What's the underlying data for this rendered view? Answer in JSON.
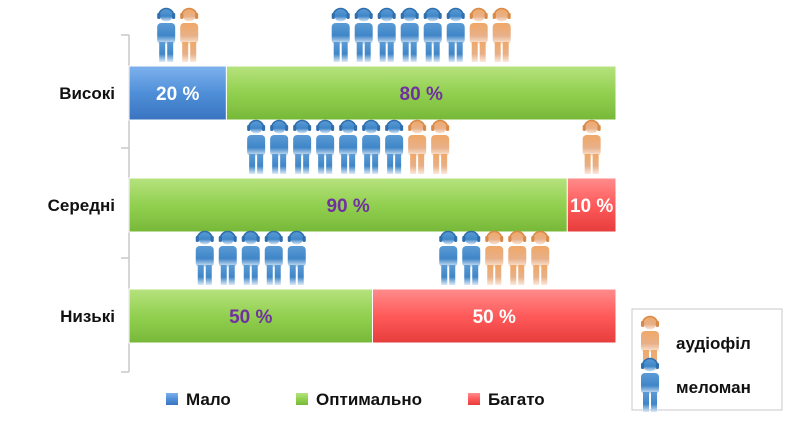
{
  "chart_data": {
    "type": "bar",
    "orientation": "horizontal",
    "stacked": true,
    "categories": [
      "Високі",
      "Середні",
      "Низькі"
    ],
    "series": [
      {
        "name": "Мало",
        "values": [
          20,
          0,
          0
        ],
        "color": "#4f8fd8"
      },
      {
        "name": "Оптимально",
        "values": [
          80,
          90,
          50
        ],
        "color": "#92d050"
      },
      {
        "name": "Багато",
        "values": [
          0,
          10,
          50
        ],
        "color": "#ff5a5a"
      }
    ],
    "value_suffix": " %",
    "xlim": [
      0,
      100
    ],
    "legend_position": "bottom",
    "people": [
      {
        "category": "Високі",
        "groups": [
          {
            "series": "Мало",
            "meloman": 1,
            "audiophile": 1
          },
          {
            "series": "Оптимально",
            "meloman": 6,
            "audiophile": 2
          }
        ]
      },
      {
        "category": "Середні",
        "groups": [
          {
            "series": "Оптимально",
            "meloman": 7,
            "audiophile": 2
          },
          {
            "series": "Багато",
            "meloman": 0,
            "audiophile": 1
          }
        ]
      },
      {
        "category": "Низькі",
        "groups": [
          {
            "series": "Оптимально",
            "meloman": 5,
            "audiophile": 0
          },
          {
            "series": "Багато",
            "meloman": 2,
            "audiophile": 3
          }
        ]
      }
    ]
  },
  "people_legend": {
    "audiophile_label": "аудіофіл",
    "meloman_label": "меломан",
    "audiophile_color": "#f0a868",
    "meloman_color": "#3f86c8"
  }
}
